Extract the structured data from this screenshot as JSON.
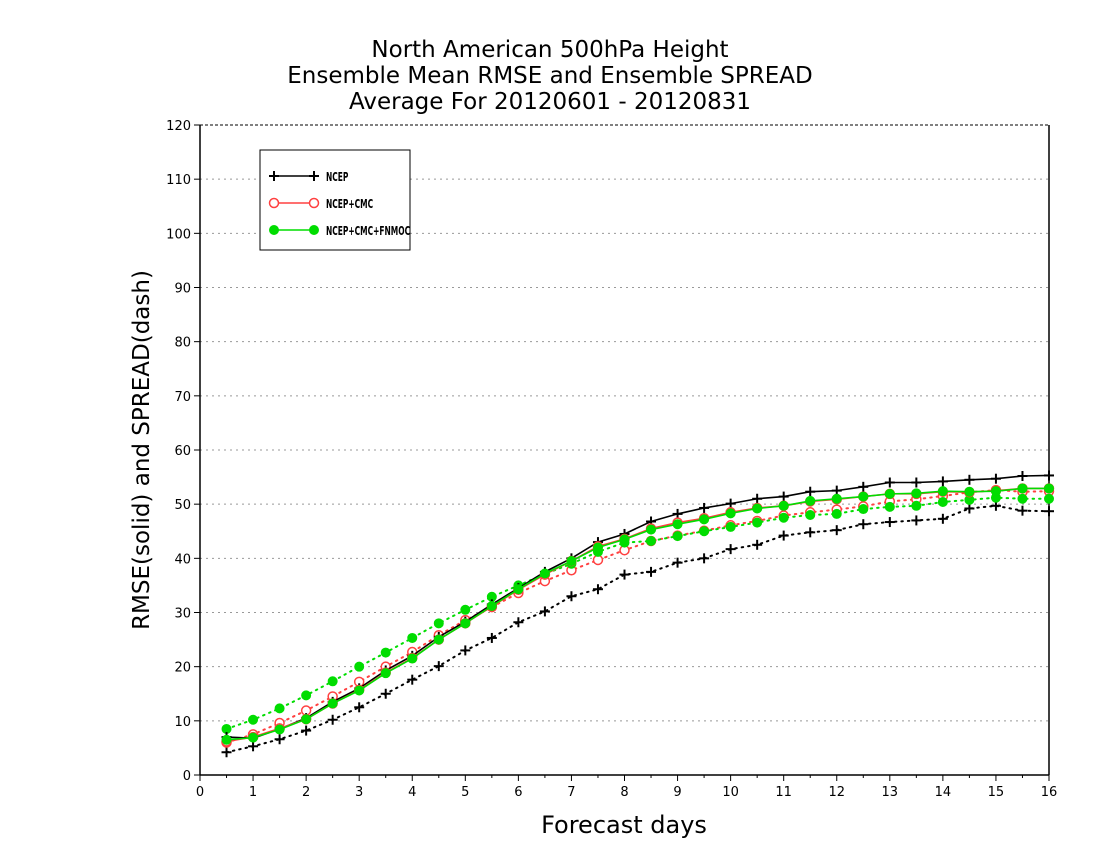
{
  "chart_data": {
    "type": "line",
    "title": [
      "North American 500hPa Height",
      "Ensemble Mean RMSE and Ensemble SPREAD",
      "Average For 20120601 - 20120831"
    ],
    "xlabel": "Forecast days",
    "ylabel": "RMSE(solid) and SPREAD(dash)",
    "xlim": [
      0,
      16
    ],
    "ylim": [
      0,
      120
    ],
    "xticks": [
      0,
      1,
      2,
      3,
      4,
      5,
      6,
      7,
      8,
      9,
      10,
      11,
      12,
      13,
      14,
      15,
      16
    ],
    "yticks": [
      0,
      10,
      20,
      30,
      40,
      50,
      60,
      70,
      80,
      90,
      100,
      110,
      120
    ],
    "grid": "horizontal dotted",
    "legend_position": "top-left",
    "x": [
      0.5,
      1,
      1.5,
      2,
      2.5,
      3,
      3.5,
      4,
      4.5,
      5,
      5.5,
      6,
      6.5,
      7,
      7.5,
      8,
      8.5,
      9,
      9.5,
      10,
      10.5,
      11,
      11.5,
      12,
      12.5,
      13,
      13.5,
      14,
      14.5,
      15,
      15.5,
      16
    ],
    "series": [
      {
        "name": "NCEP",
        "metric": "RMSE",
        "style": "solid",
        "color": "#000000",
        "marker": "plus",
        "values": [
          7.0,
          6.8,
          8.5,
          10.5,
          13.5,
          16.0,
          19.3,
          22.0,
          25.5,
          28.3,
          31.5,
          34.5,
          37.5,
          40.0,
          43.0,
          44.5,
          46.8,
          48.2,
          49.3,
          50.1,
          51.0,
          51.4,
          52.3,
          52.5,
          53.2,
          54.0,
          54.0,
          54.2,
          54.5,
          54.7,
          55.2,
          55.3
        ]
      },
      {
        "name": "NCEP+CMC",
        "metric": "RMSE",
        "style": "solid",
        "color": "#ff4040",
        "marker": "circle-open",
        "values": [
          6.2,
          7.0,
          8.6,
          10.3,
          13.2,
          15.7,
          18.9,
          21.6,
          25.0,
          28.0,
          31.1,
          34.2,
          37.0,
          39.5,
          42.2,
          43.6,
          45.5,
          46.6,
          47.4,
          48.5,
          49.3,
          49.7,
          50.5,
          50.9,
          51.4,
          51.9,
          51.9,
          52.3,
          52.2,
          52.5,
          52.9,
          52.9
        ]
      },
      {
        "name": "NCEP+CMC+FNMOC",
        "metric": "RMSE",
        "style": "solid",
        "color": "#00dd00",
        "marker": "circle-filled",
        "values": [
          6.5,
          6.9,
          8.4,
          10.3,
          13.2,
          15.6,
          18.8,
          21.5,
          25.0,
          28.0,
          31.2,
          34.3,
          37.2,
          39.5,
          42.0,
          43.5,
          45.3,
          46.3,
          47.2,
          48.3,
          49.2,
          49.7,
          50.6,
          51.0,
          51.4,
          51.9,
          52.0,
          52.4,
          52.3,
          52.4,
          52.9,
          52.9
        ]
      },
      {
        "name": "NCEP",
        "metric": "SPREAD",
        "style": "dotted",
        "color": "#000000",
        "marker": "plus",
        "values": [
          4.2,
          5.3,
          6.6,
          8.2,
          10.2,
          12.5,
          15.0,
          17.6,
          20.1,
          23.0,
          25.3,
          28.2,
          30.2,
          33.0,
          34.3,
          37.0,
          37.5,
          39.2,
          40.0,
          41.7,
          42.5,
          44.2,
          44.8,
          45.2,
          46.3,
          46.7,
          47.0,
          47.3,
          49.2,
          49.7,
          48.8,
          48.7
        ]
      },
      {
        "name": "NCEP+CMC",
        "metric": "SPREAD",
        "style": "dotted",
        "color": "#ff4040",
        "marker": "circle-open",
        "values": [
          6.0,
          7.5,
          9.6,
          11.9,
          14.5,
          17.2,
          20.0,
          22.7,
          25.8,
          28.6,
          31.0,
          33.6,
          35.8,
          37.8,
          39.7,
          41.5,
          43.2,
          44.2,
          45.1,
          46.1,
          46.9,
          47.9,
          48.5,
          49.0,
          49.6,
          50.5,
          50.9,
          51.5,
          52.2,
          52.6,
          52.3,
          52.4
        ]
      },
      {
        "name": "NCEP+CMC+FNMOC",
        "metric": "SPREAD",
        "style": "dotted",
        "color": "#00dd00",
        "marker": "circle-filled",
        "values": [
          8.5,
          10.2,
          12.3,
          14.7,
          17.3,
          20.0,
          22.6,
          25.3,
          28.0,
          30.5,
          32.9,
          35.0,
          37.1,
          39.0,
          41.2,
          42.9,
          43.2,
          44.1,
          45.0,
          45.8,
          46.6,
          47.5,
          48.0,
          48.2,
          49.1,
          49.5,
          49.7,
          50.4,
          50.8,
          51.2,
          51.0,
          51.0
        ]
      }
    ]
  }
}
